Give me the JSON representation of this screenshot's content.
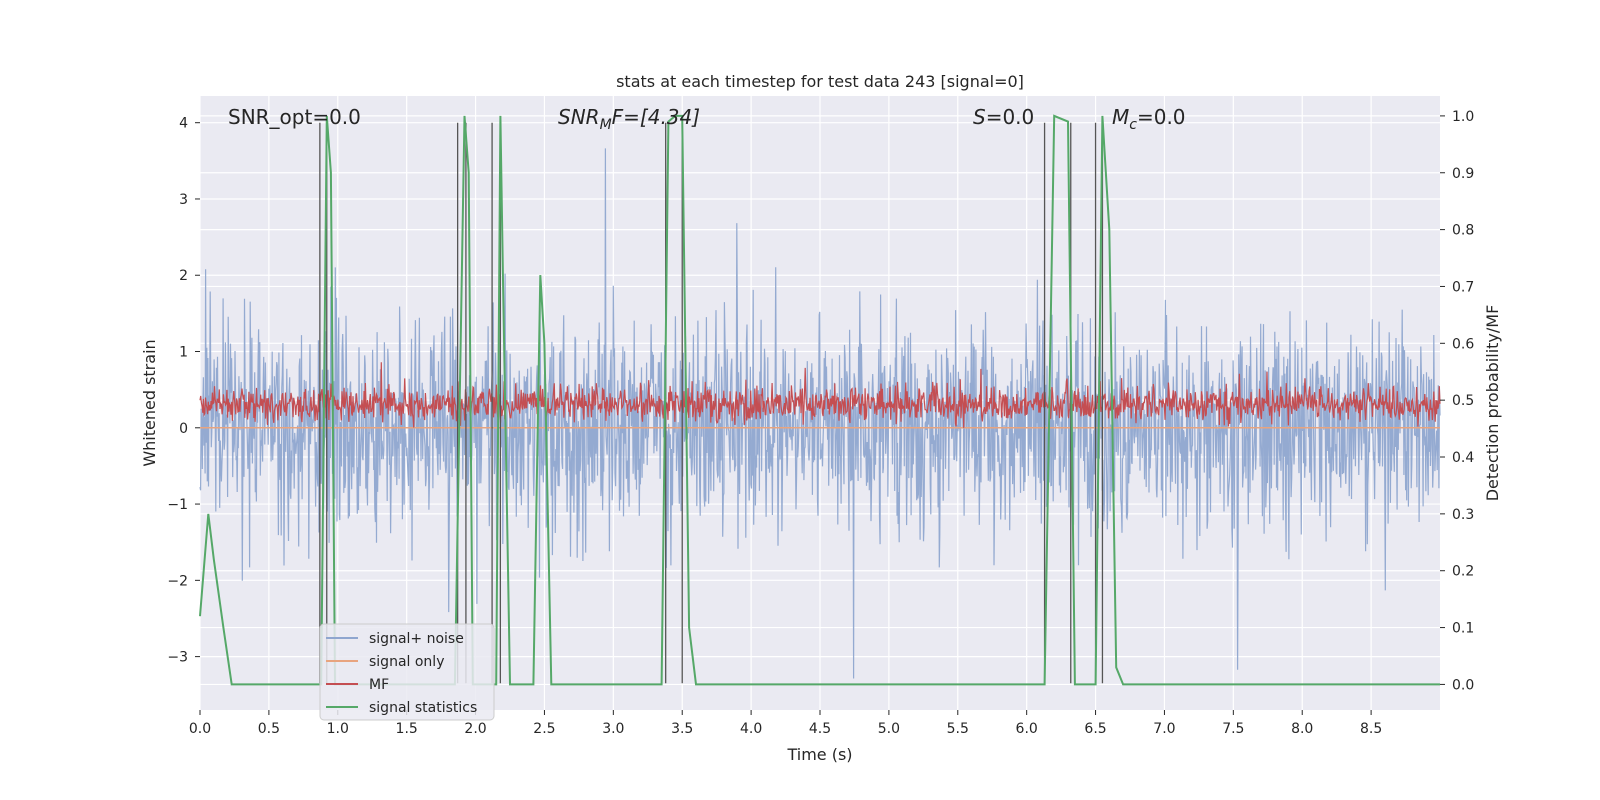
{
  "chart_data": {
    "type": "line",
    "title": "stats at each timestep for test data 243 [signal=0]",
    "xlabel": "Time (s)",
    "ylabel_left": "Whitened strain",
    "ylabel_right": "Detection probability/MF",
    "xlim": [
      0,
      9.0
    ],
    "ylim_left": [
      -3.7,
      4.35
    ],
    "ylim_right": [
      -0.045,
      1.035
    ],
    "x_ticks": [
      "0.0",
      "0.5",
      "1.0",
      "1.5",
      "2.0",
      "2.5",
      "3.0",
      "3.5",
      "4.0",
      "4.5",
      "5.0",
      "5.5",
      "6.0",
      "6.5",
      "7.0",
      "7.5",
      "8.0",
      "8.5"
    ],
    "y_ticks_left": [
      "−3",
      "−2",
      "−1",
      "0",
      "1",
      "2",
      "3",
      "4"
    ],
    "y_ticks_right": [
      "0.0",
      "0.1",
      "0.2",
      "0.3",
      "0.4",
      "0.5",
      "0.6",
      "0.7",
      "0.8",
      "0.9",
      "1.0"
    ],
    "grid": true,
    "legend_position": "lower-left",
    "annotations": {
      "snr_opt": "SNR_opt=0.0",
      "snr_mf_prefix": "SNR",
      "snr_mf_sub": "M",
      "snr_mf_suffix": "F=[4.34]",
      "s_prefix": "S",
      "s_suffix": "=0.0",
      "mc_prefix": "M",
      "mc_sub": "c",
      "mc_suffix": "=0.0"
    },
    "series": [
      {
        "name": "signal+ noise",
        "color": "#8fa6cf",
        "axis": "left",
        "envelope": {
          "mean": 0.0,
          "typical_abs": 1.2,
          "max": 4.0,
          "min": -3.3
        }
      },
      {
        "name": "signal only",
        "color": "#e8a47f",
        "axis": "left",
        "values": {
          "x": [
            0,
            9.0
          ],
          "y": [
            0,
            0
          ]
        }
      },
      {
        "name": "MF",
        "color": "#c44e52",
        "axis": "left",
        "envelope": {
          "mean": 0.3,
          "min": 0.0,
          "max": 1.0
        }
      },
      {
        "name": "signal statistics",
        "color": "#55a868",
        "axis": "right",
        "x": [
          0.0,
          0.06,
          0.1,
          0.17,
          0.23,
          0.88,
          0.92,
          0.95,
          0.98,
          1.85,
          1.92,
          1.95,
          1.98,
          2.09,
          2.15,
          2.18,
          2.2,
          2.25,
          2.32,
          2.42,
          2.47,
          2.5,
          2.55,
          2.58,
          3.35,
          3.4,
          3.45,
          3.5,
          3.55,
          3.6,
          6.13,
          6.2,
          6.3,
          6.35,
          6.5,
          6.55,
          6.6,
          6.65,
          6.7,
          9.0
        ],
        "y": [
          0.12,
          0.3,
          0.22,
          0.1,
          0.0,
          0.0,
          1.0,
          0.9,
          0.0,
          0.0,
          1.0,
          0.9,
          0.0,
          0.0,
          0.0,
          1.0,
          0.7,
          0.0,
          0.0,
          0.0,
          0.72,
          0.6,
          0.0,
          0.0,
          0.0,
          0.99,
          1.0,
          1.0,
          0.1,
          0.0,
          0.0,
          1.0,
          0.99,
          0.0,
          0.0,
          1.0,
          0.8,
          0.03,
          0.0,
          0.0
        ]
      }
    ],
    "vertical_lines_x": [
      0.87,
      0.92,
      1.87,
      1.93,
      2.12,
      2.18,
      3.38,
      3.5,
      6.13,
      6.32,
      6.5,
      6.55
    ]
  }
}
